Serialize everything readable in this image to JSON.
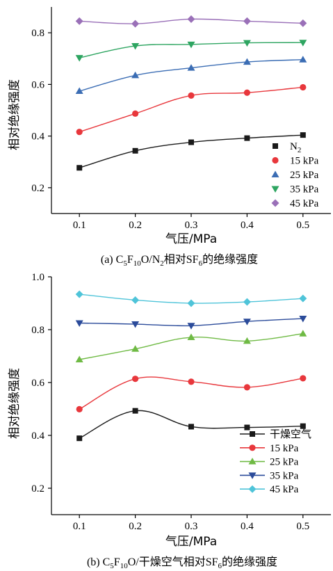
{
  "chart_data": [
    {
      "type": "line",
      "caption": "(a)  C5F10O/N2相对SF6的绝缘强度",
      "caption_parts": {
        "prefix": "(a)  C",
        "s1": "5",
        "f": "F",
        "s2": "10",
        "mid": "O/N",
        "s3": "2",
        "rest": "相对SF",
        "s4": "6",
        "tail": "的绝缘强度"
      },
      "xlabel": "气压/MPa",
      "ylabel": "相对绝缘强度",
      "x": [
        0.1,
        0.2,
        0.3,
        0.4,
        0.5
      ],
      "xticks": [
        "0.1",
        "0.2",
        "0.3",
        "0.4",
        "0.5"
      ],
      "xlim": [
        0.05,
        0.55
      ],
      "ylim": [
        0.1,
        0.9
      ],
      "yticks": [
        "0.2",
        "0.4",
        "0.6",
        "0.8"
      ],
      "legend_position": "bottom-right",
      "series": [
        {
          "name": "N2",
          "name_base": "N",
          "name_sub": "2",
          "marker": "square",
          "color": "#1a1a1a",
          "values": [
            0.277,
            0.343,
            0.376,
            0.392,
            0.404
          ]
        },
        {
          "name": "15 kPa",
          "marker": "circle",
          "color": "#e8373c",
          "values": [
            0.416,
            0.487,
            0.557,
            0.568,
            0.589
          ]
        },
        {
          "name": "25 kPa",
          "marker": "triangle-up",
          "color": "#3b6db4",
          "values": [
            0.574,
            0.635,
            0.664,
            0.687,
            0.696
          ]
        },
        {
          "name": "35 kPa",
          "marker": "triangle-down",
          "color": "#2ea561",
          "values": [
            0.703,
            0.749,
            0.755,
            0.761,
            0.762
          ]
        },
        {
          "name": "45 kPa",
          "marker": "diamond",
          "color": "#9a70b8",
          "values": [
            0.845,
            0.835,
            0.853,
            0.845,
            0.837
          ]
        }
      ]
    },
    {
      "type": "line",
      "caption": "(b)  C5F10O/干燥空气相对SF6的绝缘强度",
      "caption_parts": {
        "prefix": "(b)  C",
        "s1": "5",
        "f": "F",
        "s2": "10",
        "rest": "O/干燥空气相对SF",
        "s4": "6",
        "tail": "的绝缘强度"
      },
      "xlabel": "气压/MPa",
      "ylabel": "相对绝缘强度",
      "x": [
        0.1,
        0.2,
        0.3,
        0.4,
        0.5
      ],
      "xticks": [
        "0.1",
        "0.2",
        "0.3",
        "0.4",
        "0.5"
      ],
      "xlim": [
        0.05,
        0.55
      ],
      "ylim": [
        0.1,
        1.0
      ],
      "yticks": [
        "0.2",
        "0.4",
        "0.6",
        "0.8",
        "1.0"
      ],
      "legend_position": "bottom-right",
      "series": [
        {
          "name": "干燥空气",
          "marker": "square",
          "color": "#1a1a1a",
          "values": [
            0.389,
            0.493,
            0.433,
            0.43,
            0.435
          ]
        },
        {
          "name": "15 kPa",
          "marker": "circle",
          "color": "#e8373c",
          "values": [
            0.499,
            0.614,
            0.603,
            0.582,
            0.616
          ]
        },
        {
          "name": "25 kPa",
          "marker": "triangle-up",
          "color": "#6fba44",
          "values": [
            0.687,
            0.727,
            0.771,
            0.757,
            0.785
          ]
        },
        {
          "name": "35 kPa",
          "marker": "triangle-down",
          "color": "#2b4b9a",
          "values": [
            0.825,
            0.821,
            0.815,
            0.831,
            0.842
          ]
        },
        {
          "name": "45 kPa",
          "marker": "diamond",
          "color": "#4fc4d9",
          "values": [
            0.934,
            0.912,
            0.9,
            0.905,
            0.918
          ]
        }
      ]
    }
  ]
}
